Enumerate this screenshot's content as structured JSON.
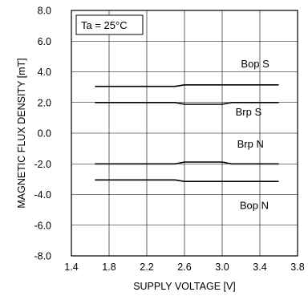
{
  "chart_data": {
    "type": "line",
    "xlabel": "SUPPLY VOLTAGE [V]",
    "ylabel": "MAGNETIC FLUX DENSITY [mT]",
    "xlim": [
      1.4,
      3.8
    ],
    "ylim": [
      -8.0,
      8.0
    ],
    "x_ticks": [
      1.4,
      1.8,
      2.2,
      2.6,
      3.0,
      3.4,
      3.8
    ],
    "x_tick_labels": [
      "1.4",
      "1.8",
      "2.2",
      "2.6",
      "3.0",
      "3.4",
      "3.8"
    ],
    "y_ticks": [
      8.0,
      6.0,
      4.0,
      2.0,
      0.0,
      -2.0,
      -4.0,
      -6.0,
      -8.0
    ],
    "y_tick_labels": [
      "8.0",
      "6.0",
      "4.0",
      "2.0",
      "0.0",
      "-2.0",
      "-4.0",
      "-6.0",
      "-8.0"
    ],
    "grid": true,
    "annotation": "Ta = 25°C",
    "series": [
      {
        "name": "Bop S",
        "x": [
          1.65,
          2.5,
          2.6,
          3.6
        ],
        "values": [
          3.05,
          3.05,
          3.15,
          3.15
        ]
      },
      {
        "name": "Brp S",
        "x": [
          1.65,
          2.5,
          2.6,
          3.0,
          3.1,
          3.6
        ],
        "values": [
          2.0,
          2.0,
          1.88,
          1.88,
          2.0,
          2.0
        ]
      },
      {
        "name": "Brp N",
        "x": [
          1.65,
          2.5,
          2.6,
          3.0,
          3.1,
          3.6
        ],
        "values": [
          -2.0,
          -2.0,
          -1.88,
          -1.88,
          -2.0,
          -2.0
        ]
      },
      {
        "name": "Bop N",
        "x": [
          1.65,
          2.5,
          2.6,
          3.6
        ],
        "values": [
          -3.05,
          -3.05,
          -3.15,
          -3.15
        ]
      }
    ],
    "series_label_anchor": [
      {
        "x": 3.35,
        "y": 4.3
      },
      {
        "x": 3.28,
        "y": 1.15
      },
      {
        "x": 3.3,
        "y": -0.95
      },
      {
        "x": 3.34,
        "y": -4.95
      }
    ]
  }
}
